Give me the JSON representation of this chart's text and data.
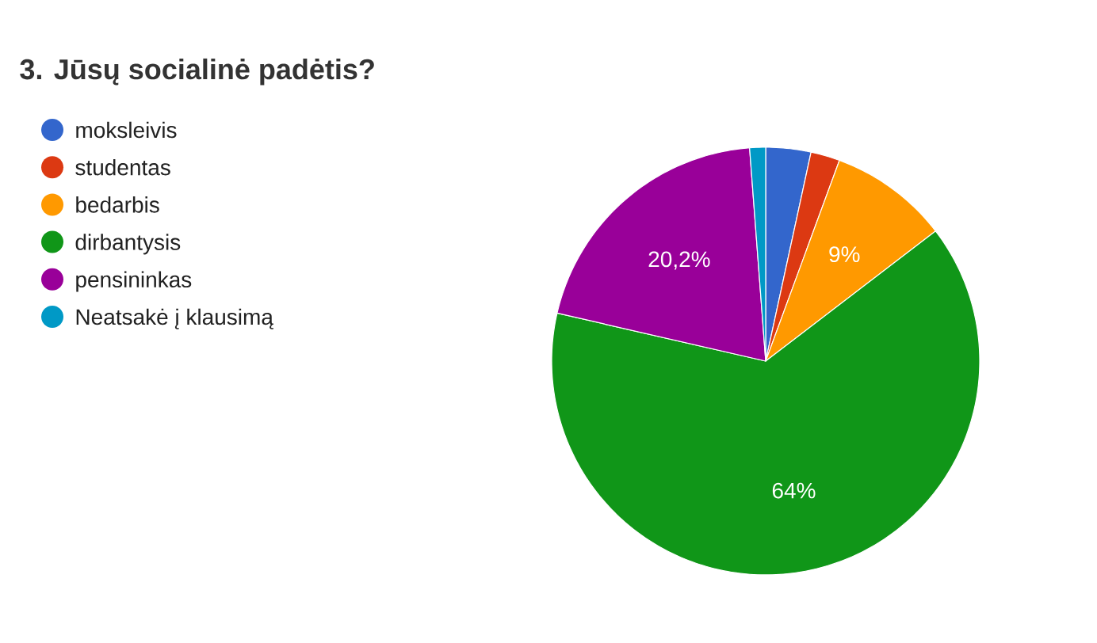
{
  "chart_data": {
    "type": "pie",
    "title": "3. Jūsų socialinė padėtis?",
    "categories": [
      "moksleivis",
      "studentas",
      "bedarbis",
      "dirbantysis",
      "pensininkas",
      "Neatsakė į klausimą"
    ],
    "values": [
      3.4,
      2.2,
      9,
      64,
      20.2,
      1.2
    ],
    "colors": [
      "#3366cc",
      "#dc3912",
      "#ff9900",
      "#109618",
      "#990099",
      "#0099c6"
    ],
    "value_labels": [
      null,
      null,
      "9%",
      "64%",
      "20,2%",
      null
    ],
    "legend": "left"
  }
}
